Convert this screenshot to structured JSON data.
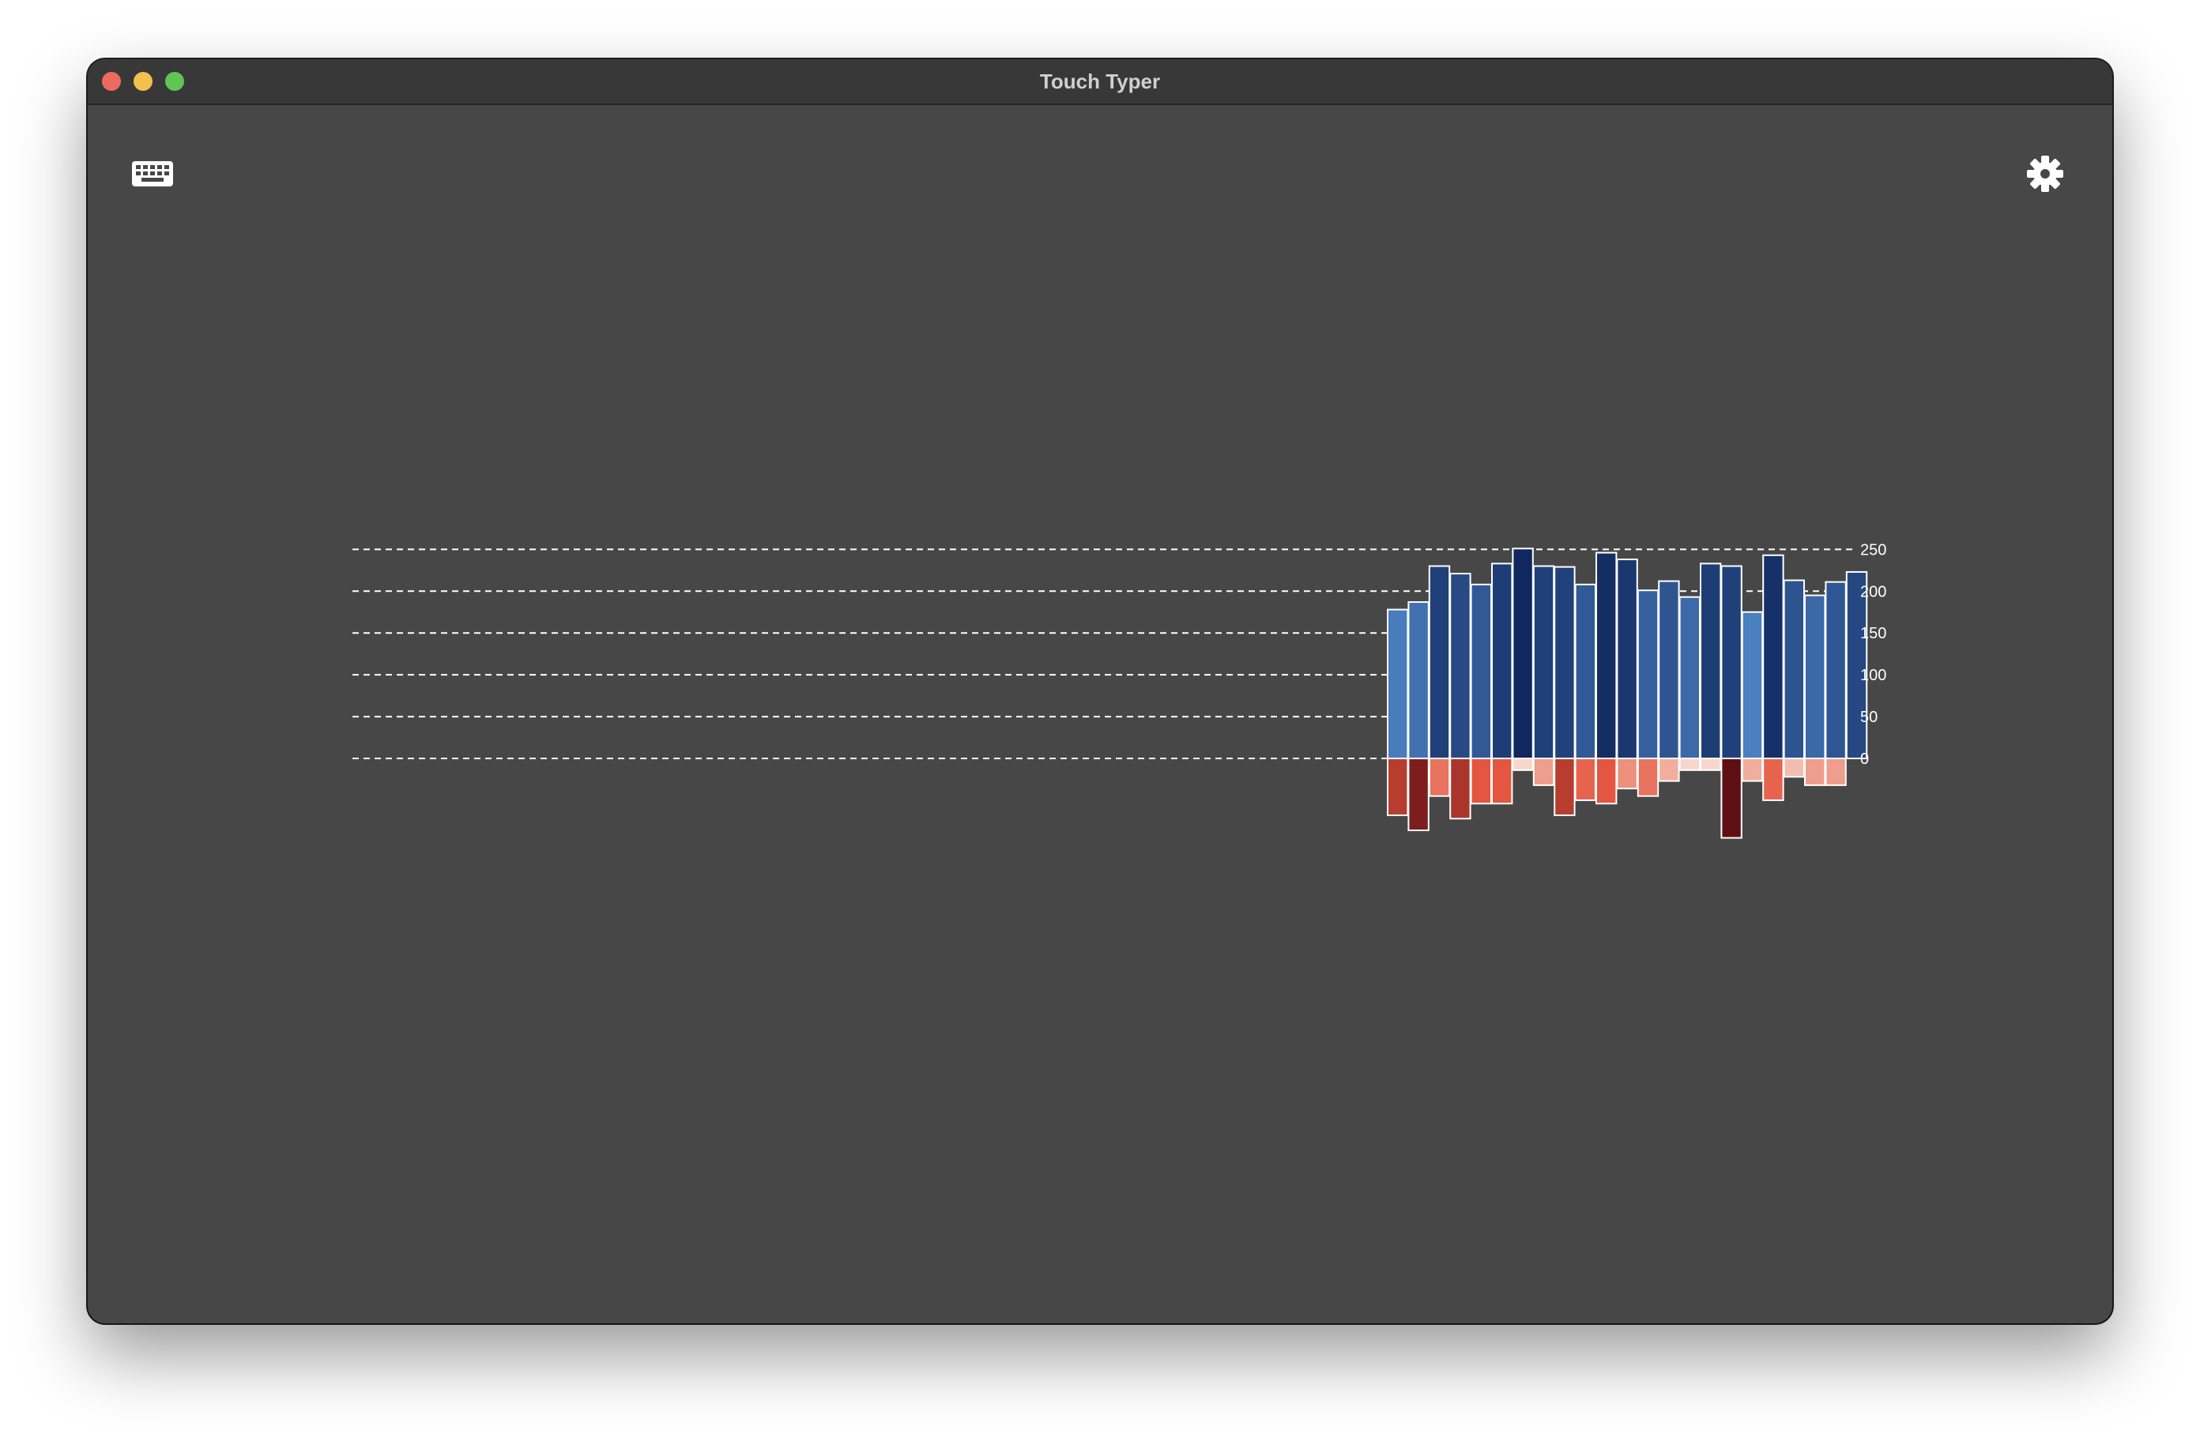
{
  "window": {
    "title": "Touch Typer",
    "controls": [
      "close",
      "minimize",
      "zoom"
    ]
  },
  "toolbar": {
    "left_icon": "keyboard-icon",
    "right_icon": "gear-icon"
  },
  "colors": {
    "window_bg": "#474747",
    "titlebar_bg": "#383838",
    "positive_light": "#4a7fc0",
    "positive_dark": "#10285e",
    "negative_light": "#f7d7cb",
    "negative_dark": "#5e0f14"
  },
  "chart_data": {
    "type": "bar",
    "y_axis_position": "right",
    "grid": "dashed horizontal",
    "ylim": [
      -100,
      250
    ],
    "yticks": [
      {
        "value": 250,
        "label": "250"
      },
      {
        "value": 200,
        "label": "200"
      },
      {
        "value": 150,
        "label": "150"
      },
      {
        "value": 100,
        "label": "100"
      },
      {
        "value": 50,
        "label": "50"
      },
      {
        "value": 0,
        "label": "0"
      }
    ],
    "x_slots": 80,
    "series": [
      {
        "values": [
          178,
          187,
          230,
          221,
          208,
          233,
          251,
          230,
          229,
          208,
          246,
          238,
          201,
          212,
          193,
          233,
          230,
          175,
          243,
          213,
          195,
          211,
          223
        ]
      },
      {
        "values": [
          -68,
          -86,
          -45,
          -72,
          -54,
          -54,
          -14,
          -32,
          -68,
          -50,
          -54,
          -36,
          -45,
          -27,
          -14,
          -14,
          -95,
          -27,
          -50,
          -22,
          -32,
          -32
        ]
      }
    ]
  }
}
